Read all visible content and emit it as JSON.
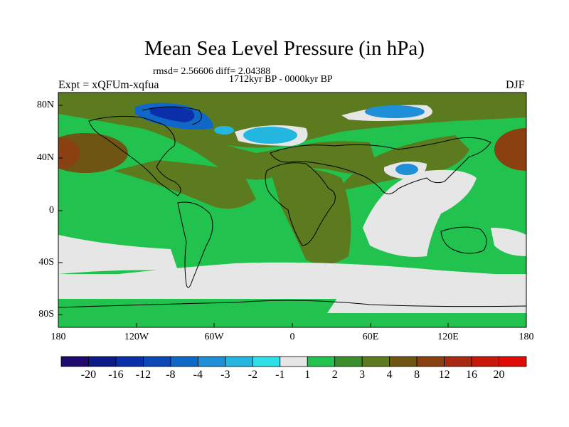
{
  "title": "Mean Sea Level Pressure (in hPa)",
  "stats": "rmsd= 2.56606 diff= 2.04388",
  "period": "1712kyr BP - 0000kyr BP",
  "experiment": "Expt = xQFUm-xqfua",
  "season": "DJF",
  "lat_ticks": [
    "80N",
    "40N",
    "0",
    "40S",
    "80S"
  ],
  "lon_ticks": [
    "180",
    "120W",
    "60W",
    "0",
    "60E",
    "120E",
    "180"
  ],
  "colorbar": {
    "labels": [
      "-20",
      "-16",
      "-12",
      "-8",
      "-4",
      "-3",
      "-2",
      "-1",
      "1",
      "2",
      "3",
      "4",
      "8",
      "12",
      "16",
      "20"
    ],
    "colors": [
      "#1e0a6e",
      "#0c1a8a",
      "#0a2fa8",
      "#0b48b8",
      "#0f68c8",
      "#1f8fd8",
      "#23b7e0",
      "#2ee0e6",
      "#e6e6e6",
      "#22c24e",
      "#3a8f2c",
      "#5c7a1e",
      "#6e5514",
      "#8a4010",
      "#a82a10",
      "#c8180c",
      "#e00c08"
    ]
  }
}
